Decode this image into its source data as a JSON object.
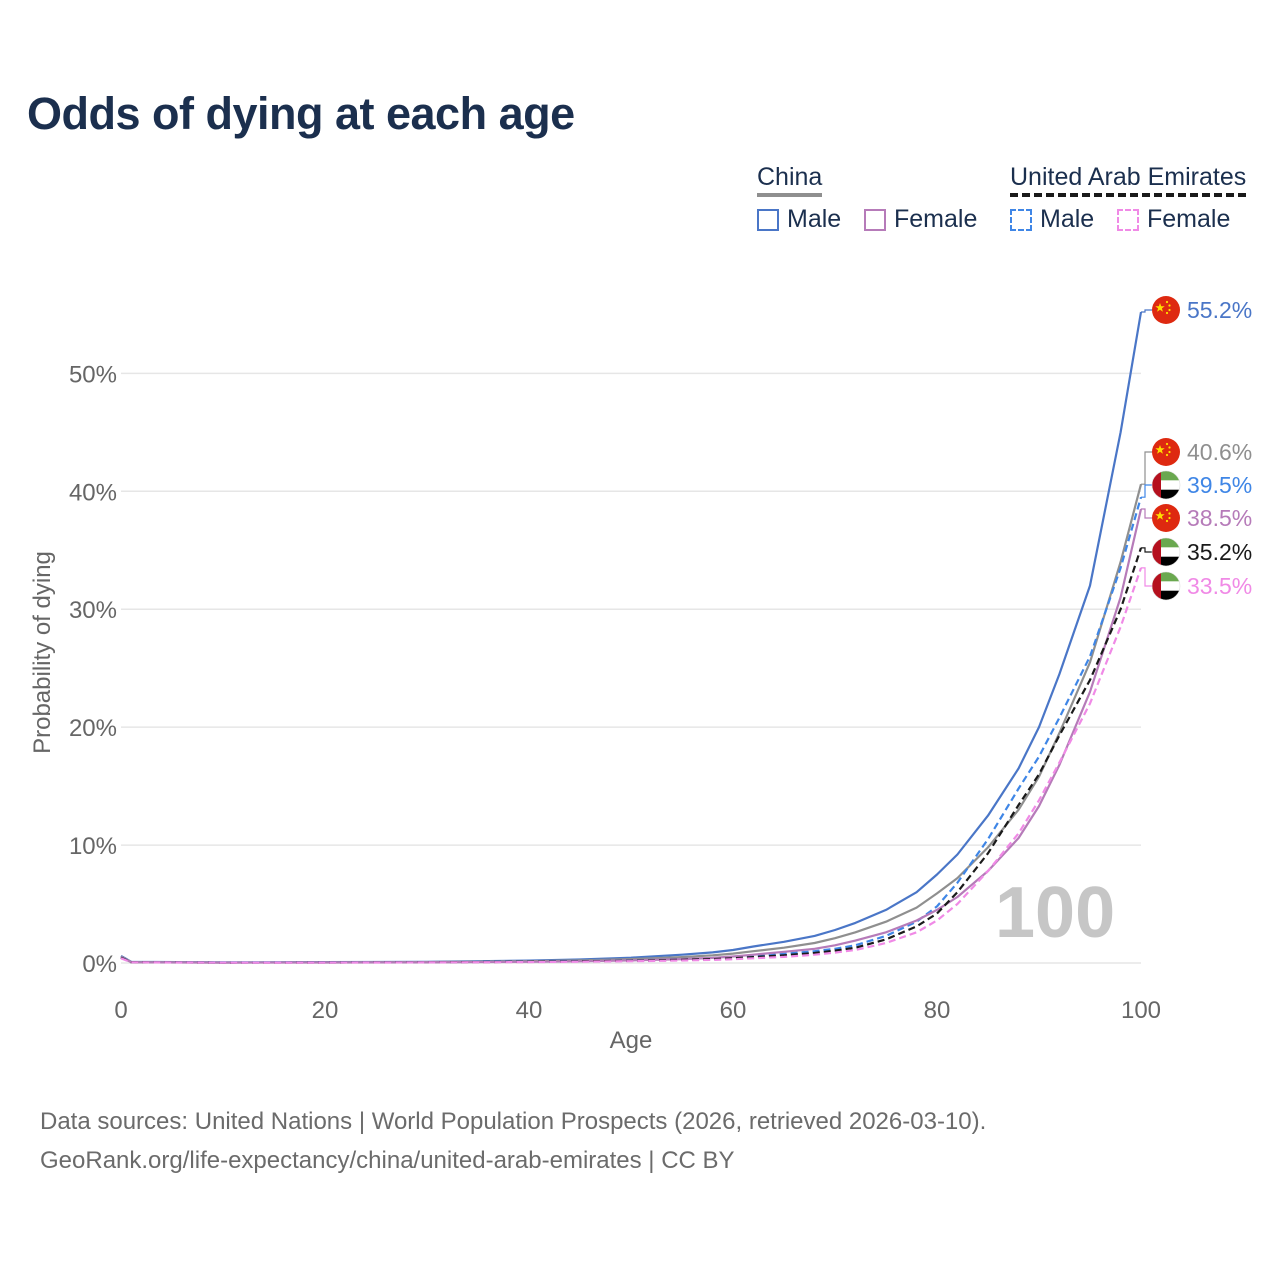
{
  "title": "Odds of dying at each age",
  "legend": {
    "china": {
      "name": "China",
      "male": "Male",
      "female": "Female"
    },
    "uae": {
      "name": "United Arab Emirates",
      "male": "Male",
      "female": "Female"
    }
  },
  "big_age": "100",
  "source": {
    "line1": "Data sources: United Nations | World Population Prospects (2026, retrieved 2026-03-10).",
    "line2": "GeoRank.org/life-expectancy/china/united-arab-emirates | CC BY"
  },
  "colors": {
    "china_male": "#4a76c7",
    "china_female": "#b67bb9",
    "china_total": "#8f8f8f",
    "uae_male": "#3f86e6",
    "uae_female": "#f08ae6",
    "uae_total": "#1a1a1a"
  },
  "chart_data": {
    "type": "line",
    "title": "Odds of dying at each age",
    "xlabel": "Age",
    "ylabel": "Probability of dying",
    "xlim": [
      0,
      100
    ],
    "ylim": [
      0,
      55.2
    ],
    "xticks": [
      0,
      20,
      40,
      60,
      80,
      100
    ],
    "xtick_labels": [
      "0",
      "20",
      "40",
      "60",
      "80",
      "100"
    ],
    "yticks": [
      0,
      10,
      20,
      30,
      40,
      50
    ],
    "ytick_labels": [
      "0%",
      "10%",
      "20%",
      "30%",
      "40%",
      "50%"
    ],
    "x": [
      0,
      1,
      10,
      20,
      30,
      40,
      45,
      50,
      55,
      58,
      60,
      62,
      65,
      68,
      70,
      72,
      75,
      78,
      80,
      82,
      85,
      88,
      90,
      92,
      95,
      98,
      100
    ],
    "series": [
      {
        "name": "China Male",
        "key": "china_male",
        "dashed": false,
        "end_label": "55.2%",
        "flag": "china",
        "values": [
          0.6,
          0.1,
          0.05,
          0.08,
          0.1,
          0.2,
          0.3,
          0.45,
          0.7,
          0.9,
          1.1,
          1.4,
          1.8,
          2.3,
          2.8,
          3.4,
          4.5,
          6.0,
          7.5,
          9.2,
          12.5,
          16.5,
          20.0,
          24.5,
          32.0,
          45.0,
          55.2
        ]
      },
      {
        "name": "China Total",
        "key": "china_total",
        "dashed": false,
        "end_label": "40.6%",
        "flag": "china",
        "values": [
          0.55,
          0.08,
          0.04,
          0.06,
          0.08,
          0.15,
          0.22,
          0.33,
          0.5,
          0.65,
          0.8,
          1.0,
          1.3,
          1.7,
          2.1,
          2.6,
          3.5,
          4.7,
          5.9,
          7.2,
          9.8,
          13.0,
          15.8,
          19.5,
          25.5,
          34.0,
          40.6
        ]
      },
      {
        "name": "United Arab Emirates Male",
        "key": "uae_male",
        "dashed": true,
        "end_label": "39.5%",
        "flag": "uae",
        "values": [
          0.5,
          0.08,
          0.04,
          0.05,
          0.07,
          0.12,
          0.17,
          0.23,
          0.33,
          0.4,
          0.48,
          0.6,
          0.78,
          1.0,
          1.2,
          1.5,
          2.3,
          3.5,
          4.8,
          6.8,
          10.5,
          14.8,
          17.5,
          20.8,
          26.0,
          33.5,
          39.5
        ]
      },
      {
        "name": "China Female",
        "key": "china_female",
        "dashed": false,
        "end_label": "38.5%",
        "flag": "china",
        "values": [
          0.5,
          0.06,
          0.03,
          0.04,
          0.05,
          0.1,
          0.14,
          0.22,
          0.33,
          0.43,
          0.55,
          0.7,
          0.95,
          1.2,
          1.5,
          1.9,
          2.6,
          3.6,
          4.5,
          5.6,
          7.8,
          10.6,
          13.3,
          16.8,
          23.0,
          31.0,
          38.5
        ]
      },
      {
        "name": "United Arab Emirates Total",
        "key": "uae_total",
        "dashed": true,
        "end_label": "35.2%",
        "flag": "uae",
        "values": [
          0.45,
          0.07,
          0.03,
          0.04,
          0.06,
          0.1,
          0.14,
          0.19,
          0.27,
          0.33,
          0.4,
          0.5,
          0.65,
          0.85,
          1.05,
          1.3,
          2.0,
          3.1,
          4.2,
          6.0,
          9.3,
          13.4,
          16.0,
          19.3,
          24.0,
          30.0,
          35.2
        ]
      },
      {
        "name": "United Arab Emirates Female",
        "key": "uae_female",
        "dashed": true,
        "end_label": "33.5%",
        "flag": "uae",
        "values": [
          0.4,
          0.06,
          0.03,
          0.03,
          0.05,
          0.08,
          0.11,
          0.15,
          0.21,
          0.26,
          0.32,
          0.4,
          0.52,
          0.7,
          0.88,
          1.1,
          1.7,
          2.6,
          3.6,
          5.0,
          7.8,
          11.0,
          13.8,
          17.0,
          22.0,
          28.5,
          33.5
        ]
      }
    ]
  }
}
